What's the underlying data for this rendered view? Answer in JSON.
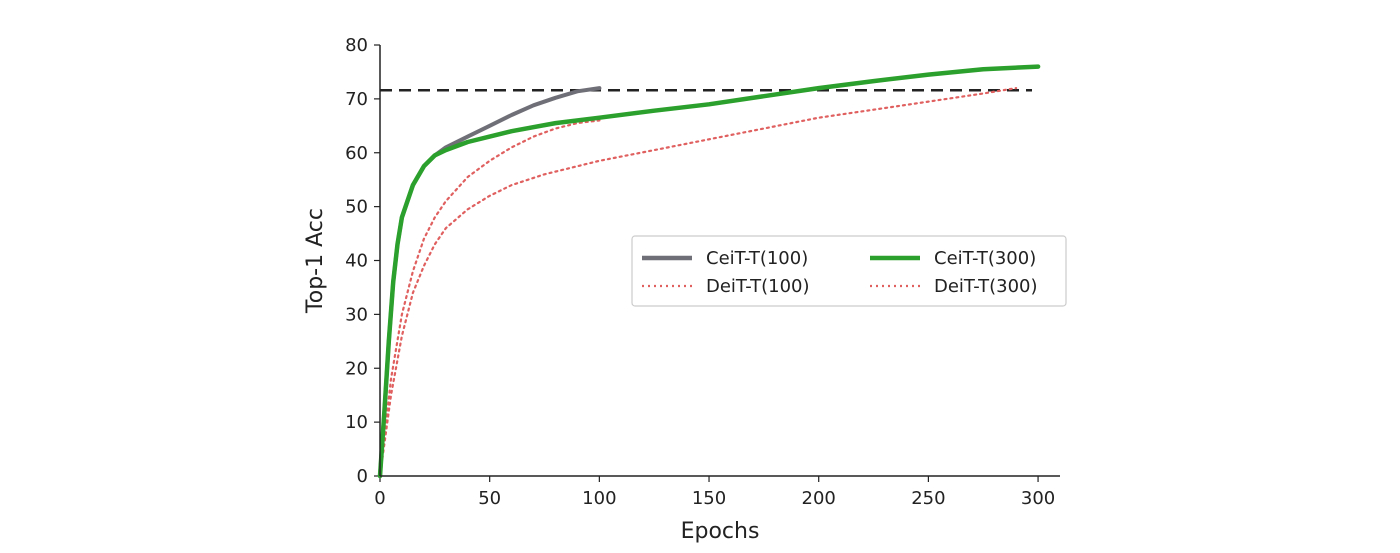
{
  "chart_data": {
    "type": "line",
    "xlabel": "Epochs",
    "ylabel": "Top-1 Acc",
    "xlim": [
      0,
      310
    ],
    "ylim": [
      0,
      80
    ],
    "xticks": [
      0,
      50,
      100,
      150,
      200,
      250,
      300
    ],
    "yticks": [
      0,
      10,
      20,
      30,
      40,
      50,
      60,
      70,
      80
    ],
    "reference_line": {
      "y": 71.6,
      "style": "dashed",
      "color": "#222222"
    },
    "legend": {
      "placement": "center-right",
      "ncol": 2
    },
    "series": [
      {
        "name": "CeiT-T(100)",
        "color": "#6f6f78",
        "style": "solid",
        "x": [
          0,
          2,
          4,
          6,
          8,
          10,
          15,
          20,
          25,
          30,
          40,
          50,
          60,
          70,
          80,
          90,
          100
        ],
        "y": [
          0,
          12,
          25,
          36,
          43,
          48,
          54,
          57.5,
          59.5,
          61,
          63,
          65,
          67,
          68.8,
          70.2,
          71.4,
          72
        ]
      },
      {
        "name": "CeiT-T(300)",
        "color": "#2ca02c",
        "style": "solid",
        "x": [
          0,
          2,
          4,
          6,
          8,
          10,
          15,
          20,
          25,
          30,
          40,
          50,
          60,
          80,
          100,
          125,
          150,
          175,
          200,
          225,
          250,
          275,
          300
        ],
        "y": [
          0,
          12,
          25,
          36,
          43,
          48,
          54,
          57.5,
          59.5,
          60.5,
          62,
          63,
          64,
          65.5,
          66.5,
          67.8,
          69,
          70.5,
          72,
          73.3,
          74.5,
          75.5,
          76
        ]
      },
      {
        "name": "DeiT-T(100)",
        "color": "#e06060",
        "style": "dotted",
        "x": [
          0,
          5,
          10,
          15,
          20,
          25,
          30,
          40,
          50,
          60,
          70,
          80,
          90,
          100
        ],
        "y": [
          0,
          18,
          30,
          38,
          44,
          48,
          51,
          55.5,
          58.5,
          61,
          63,
          64.5,
          65.5,
          66
        ]
      },
      {
        "name": "DeiT-T(300)",
        "color": "#e06060",
        "style": "dotted",
        "x": [
          0,
          5,
          10,
          15,
          20,
          25,
          30,
          40,
          50,
          60,
          75,
          100,
          125,
          150,
          175,
          200,
          225,
          250,
          275,
          290
        ],
        "y": [
          0,
          15,
          26,
          34,
          39,
          43,
          46,
          49.5,
          52,
          54,
          56,
          58.5,
          60.5,
          62.5,
          64.5,
          66.5,
          68,
          69.5,
          71,
          72
        ]
      }
    ]
  }
}
